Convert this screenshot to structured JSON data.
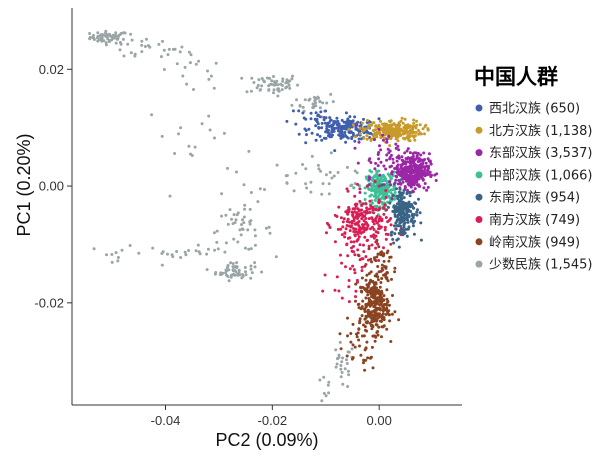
{
  "chart_data": {
    "type": "scatter",
    "xlabel": "PC2 (0.09%)",
    "ylabel": "PC1 (0.20%)",
    "xlim": [
      -0.0575,
      0.0155
    ],
    "ylim": [
      -0.0375,
      0.0305
    ],
    "x_ticks": [
      -0.04,
      -0.02,
      0.0
    ],
    "x_tick_labels": [
      "-0.04",
      "-0.02",
      "0.00"
    ],
    "y_ticks": [
      -0.02,
      0.0,
      0.02
    ],
    "y_tick_labels": [
      "-0.02",
      "0.00",
      "0.02"
    ],
    "grid": false,
    "legend": {
      "title": "中国人群",
      "placement": "right"
    },
    "series": [
      {
        "name": "少数民族 (1,545)",
        "color": "#9aa5a6",
        "count": 1545,
        "clusters": [
          {
            "cx": -0.0505,
            "cy": 0.0255,
            "sx": 0.0018,
            "sy": 0.0005,
            "n": 60
          },
          {
            "cx": -0.044,
            "cy": 0.0235,
            "sx": 0.004,
            "sy": 0.001,
            "n": 25
          },
          {
            "cx": -0.035,
            "cy": 0.0195,
            "sx": 0.003,
            "sy": 0.0018,
            "n": 15
          },
          {
            "cx": -0.02,
            "cy": 0.0175,
            "sx": 0.0025,
            "sy": 0.0009,
            "n": 55
          },
          {
            "cx": -0.012,
            "cy": 0.0145,
            "sx": 0.002,
            "sy": 0.0008,
            "n": 30
          },
          {
            "cx": -0.0345,
            "cy": 0.0075,
            "sx": 0.0045,
            "sy": 0.004,
            "n": 20
          },
          {
            "cx": -0.027,
            "cy": -0.0145,
            "sx": 0.0018,
            "sy": 0.0008,
            "n": 55
          },
          {
            "cx": -0.037,
            "cy": -0.0115,
            "sx": 0.0035,
            "sy": 0.0006,
            "n": 18
          },
          {
            "cx": -0.049,
            "cy": -0.0115,
            "sx": 0.0025,
            "sy": 0.0006,
            "n": 10
          },
          {
            "cx": -0.026,
            "cy": -0.0075,
            "sx": 0.003,
            "sy": 0.0018,
            "n": 45
          },
          {
            "cx": -0.02,
            "cy": 0.0005,
            "sx": 0.006,
            "sy": 0.003,
            "n": 15
          },
          {
            "cx": -0.009,
            "cy": 0.002,
            "sx": 0.004,
            "sy": 0.003,
            "n": 25
          },
          {
            "cx": -0.007,
            "cy": -0.031,
            "sx": 0.0012,
            "sy": 0.002,
            "n": 25
          },
          {
            "cx": -0.01,
            "cy": -0.035,
            "sx": 0.0008,
            "sy": 0.0012,
            "n": 8
          }
        ]
      },
      {
        "name": "西北汉族 (650)",
        "color": "#3f5fae",
        "count": 650,
        "clusters": [
          {
            "cx": -0.0065,
            "cy": 0.0097,
            "sx": 0.0032,
            "sy": 0.0009,
            "n": 190
          },
          {
            "cx": -0.011,
            "cy": 0.0115,
            "sx": 0.003,
            "sy": 0.0012,
            "n": 30
          }
        ]
      },
      {
        "name": "北方汉族 (1,138)",
        "color": "#c79a2a",
        "count": 1138,
        "clusters": [
          {
            "cx": 0.0025,
            "cy": 0.0095,
            "sx": 0.0028,
            "sy": 0.0009,
            "n": 240
          }
        ]
      },
      {
        "name": "中部汉族 (1,066)",
        "color": "#3fbf96",
        "count": 1066,
        "clusters": [
          {
            "cx": 0.0005,
            "cy": -0.0005,
            "sx": 0.0014,
            "sy": 0.0014,
            "n": 240
          }
        ]
      },
      {
        "name": "南方汉族 (749)",
        "color": "#d81f55",
        "count": 749,
        "clusters": [
          {
            "cx": -0.003,
            "cy": -0.0065,
            "sx": 0.0026,
            "sy": 0.0025,
            "n": 230
          },
          {
            "cx": -0.0045,
            "cy": -0.0145,
            "sx": 0.0025,
            "sy": 0.0038,
            "n": 40
          }
        ]
      },
      {
        "name": "东部汉族 (3,537)",
        "color": "#9b27a6",
        "count": 3537,
        "clusters": [
          {
            "cx": 0.0062,
            "cy": 0.0025,
            "sx": 0.0016,
            "sy": 0.0015,
            "n": 330
          },
          {
            "cx": 0.0015,
            "cy": 0.005,
            "sx": 0.003,
            "sy": 0.0028,
            "n": 60
          }
        ]
      },
      {
        "name": "东南汉族 (954)",
        "color": "#3a6486",
        "count": 954,
        "clusters": [
          {
            "cx": 0.0045,
            "cy": -0.0045,
            "sx": 0.0012,
            "sy": 0.0022,
            "n": 200
          }
        ]
      },
      {
        "name": "岭南汉族 (949)",
        "color": "#8a4320",
        "count": 949,
        "clusters": [
          {
            "cx": -0.001,
            "cy": -0.0205,
            "sx": 0.0014,
            "sy": 0.0024,
            "n": 250
          },
          {
            "cx": 0.0005,
            "cy": -0.0135,
            "sx": 0.0014,
            "sy": 0.002,
            "n": 50
          },
          {
            "cx": -0.004,
            "cy": -0.027,
            "sx": 0.0018,
            "sy": 0.0025,
            "n": 40
          }
        ]
      }
    ],
    "legend_order": [
      {
        "name": "西北汉族 (650)",
        "color": "#3f5fae"
      },
      {
        "name": "北方汉族 (1,138)",
        "color": "#c79a2a"
      },
      {
        "name": "东部汉族 (3,537)",
        "color": "#9b27a6"
      },
      {
        "name": "中部汉族 (1,066)",
        "color": "#3fbf96"
      },
      {
        "name": "东南汉族 (954)",
        "color": "#3a6486"
      },
      {
        "name": "南方汉族 (749)",
        "color": "#d81f55"
      },
      {
        "name": "岭南汉族 (949)",
        "color": "#8a4320"
      },
      {
        "name": "少数民族 (1,545)",
        "color": "#9aa5a6"
      }
    ]
  }
}
